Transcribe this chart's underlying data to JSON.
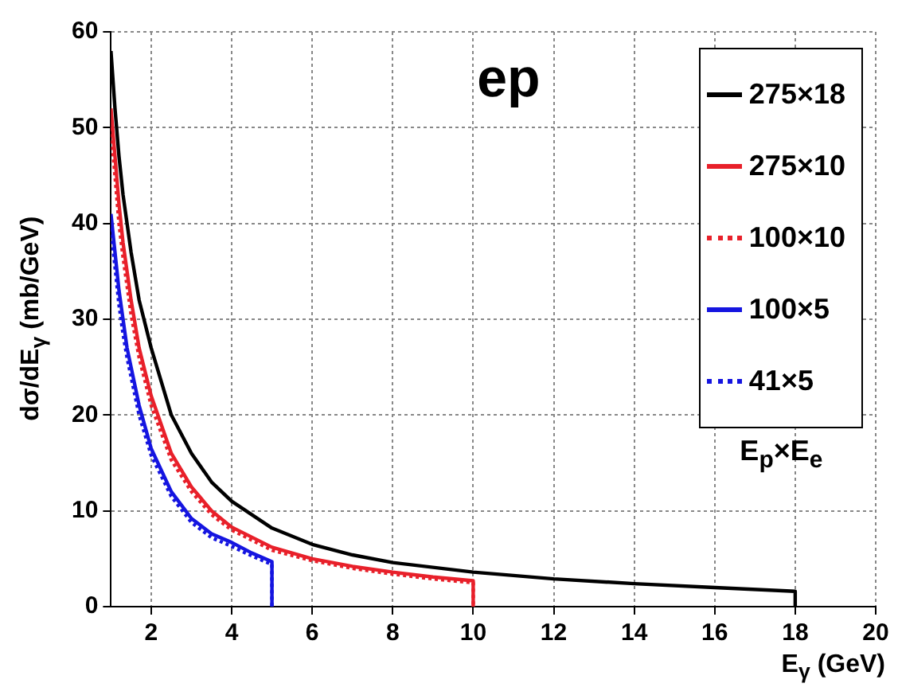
{
  "chart_data": {
    "type": "line",
    "title": "ep",
    "xlabel": "E$_{γ}$ (GeV)",
    "ylabel": "dσ/dE$_{γ}$ (mb/GeV)",
    "legend_title": "E$_{p}$×E$_{e}$",
    "xlim": [
      1,
      20
    ],
    "xticks": [
      2,
      4,
      6,
      8,
      10,
      12,
      14,
      16,
      18,
      20
    ],
    "ylim": [
      0,
      60
    ],
    "yticks": [
      0,
      10,
      20,
      30,
      40,
      50,
      60
    ],
    "grid": true,
    "legend": "top right",
    "marker": "none",
    "series": [
      {
        "name": "275×18",
        "color": "#000000",
        "line_style": "solid",
        "x": [
          1,
          1.1,
          1.2,
          1.3,
          1.4,
          1.5,
          1.7,
          2,
          2.5,
          3,
          3.5,
          4,
          5,
          6,
          7,
          8,
          10,
          12,
          14,
          16,
          18,
          18
        ],
        "values": [
          58,
          52,
          47,
          43,
          40,
          37,
          32,
          27,
          20,
          16,
          13,
          11,
          8.2,
          6.5,
          5.4,
          4.6,
          3.6,
          2.9,
          2.4,
          2.0,
          1.6,
          0
        ]
      },
      {
        "name": "275×10",
        "color": "#e8202a",
        "line_style": "solid",
        "x": [
          1,
          1.1,
          1.2,
          1.3,
          1.4,
          1.5,
          1.7,
          2,
          2.5,
          3,
          3.5,
          4,
          5,
          6,
          7,
          8,
          9,
          10,
          10
        ],
        "values": [
          52,
          47,
          42,
          38,
          35,
          32,
          27,
          22,
          16,
          12.5,
          10,
          8.3,
          6.2,
          5,
          4.2,
          3.6,
          3.1,
          2.7,
          0
        ]
      },
      {
        "name": "100×10",
        "color": "#e8202a",
        "line_style": "dotted",
        "x": [
          1,
          1.1,
          1.2,
          1.3,
          1.4,
          1.5,
          1.7,
          2,
          2.5,
          3,
          3.5,
          4,
          5,
          6,
          7,
          8,
          9,
          10,
          10
        ],
        "values": [
          50,
          45,
          40,
          36.5,
          33.5,
          30.5,
          26,
          21,
          15.3,
          12,
          9.6,
          8,
          5.9,
          4.8,
          4,
          3.4,
          2.9,
          2.5,
          0
        ]
      },
      {
        "name": "100×5",
        "color": "#1515e0",
        "line_style": "solid",
        "x": [
          1,
          1.1,
          1.2,
          1.3,
          1.4,
          1.5,
          1.7,
          2,
          2.5,
          3,
          3.5,
          4,
          4.5,
          5,
          5
        ],
        "values": [
          41,
          37,
          33,
          30,
          27,
          25,
          21,
          16.5,
          12,
          9.2,
          7.6,
          6.7,
          5.6,
          4.7,
          0
        ]
      },
      {
        "name": "41×5",
        "color": "#1515e0",
        "line_style": "dotted",
        "x": [
          1,
          1.1,
          1.2,
          1.3,
          1.4,
          1.5,
          1.7,
          2,
          2.5,
          3,
          3.5,
          4,
          4.5,
          5,
          5
        ],
        "values": [
          39.5,
          35.5,
          31.5,
          28.5,
          26,
          24,
          20,
          15.8,
          11.5,
          8.8,
          7.2,
          6.3,
          5.3,
          4.4,
          0
        ]
      }
    ]
  }
}
